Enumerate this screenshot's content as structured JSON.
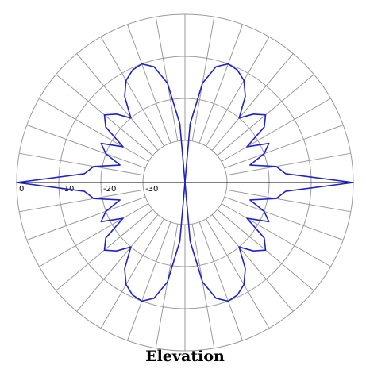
{
  "chart_data": {
    "type": "polar",
    "title": "Elevation",
    "rlim": [
      -40,
      0
    ],
    "rticks": [
      0,
      -10,
      -20,
      -30
    ],
    "thetaticks": [
      0,
      10,
      20,
      30,
      40,
      50,
      60,
      70,
      80,
      90,
      100,
      110,
      120,
      130,
      140,
      150,
      160,
      170,
      180,
      190,
      200,
      210,
      220,
      230,
      240,
      250,
      260,
      270,
      280,
      290,
      300,
      310,
      320,
      330,
      340,
      350
    ],
    "theta": [
      0,
      5,
      10,
      15,
      20,
      25,
      30,
      35,
      40,
      45,
      50,
      55,
      60,
      65,
      70,
      75,
      80,
      85,
      90,
      95,
      100,
      105,
      110,
      115,
      120,
      125,
      130,
      135,
      140,
      145,
      150,
      155,
      160,
      165,
      170,
      175,
      180,
      185,
      190,
      195,
      200,
      205,
      210,
      215,
      220,
      225,
      230,
      235,
      240,
      245,
      250,
      255,
      260,
      265,
      270,
      275,
      280,
      285,
      290,
      295,
      300,
      305,
      310,
      315,
      320,
      325,
      330,
      335,
      340,
      345,
      350,
      355
    ],
    "series": [
      {
        "color": "#1f22c8",
        "values": [
          0,
          -16,
          -18,
          -24,
          -20,
          -18,
          -23,
          -17,
          -15,
          -17,
          -20,
          -15,
          -12,
          -10.5,
          -10,
          -11.5,
          -16,
          -26,
          -40,
          -26,
          -16,
          -11.5,
          -10,
          -10.5,
          -12,
          -15,
          -20,
          -17,
          -15,
          -17,
          -23,
          -18,
          -20,
          -24,
          -18,
          -16,
          0,
          -16,
          -18,
          -24,
          -20,
          -18,
          -23,
          -17,
          -15,
          -17,
          -20,
          -15,
          -12,
          -10.5,
          -10,
          -11.5,
          -16,
          -26,
          -40,
          -26,
          -16,
          -11.5,
          -10,
          -10.5,
          -12,
          -15,
          -20,
          -17,
          -15,
          -17,
          -23,
          -18,
          -20,
          -24,
          -18,
          -16
        ]
      }
    ]
  }
}
